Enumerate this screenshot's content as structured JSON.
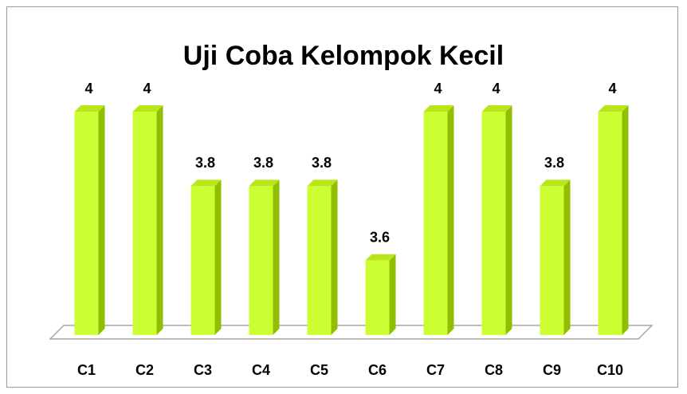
{
  "chart_data": {
    "type": "bar3d",
    "title": "Uji Coba Kelompok Kecil",
    "categories": [
      "C1",
      "C2",
      "C3",
      "C4",
      "C5",
      "C6",
      "C7",
      "C8",
      "C9",
      "C10"
    ],
    "values": [
      4,
      4,
      3.8,
      3.8,
      3.8,
      3.6,
      4,
      4,
      3.8,
      4
    ],
    "color": "#ccff33",
    "ylim": [
      3.4,
      4.0
    ]
  }
}
